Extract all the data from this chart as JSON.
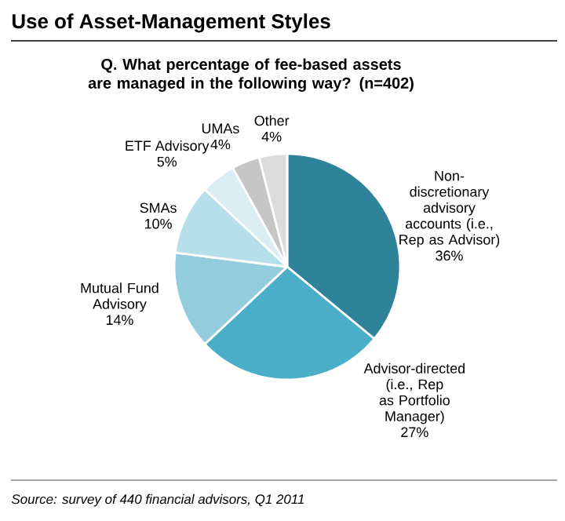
{
  "chart_data": {
    "type": "pie",
    "title": "Use of Asset-Management Styles",
    "subtitle": "Q. What percentage of fee-based assets are managed in the following way? (n=402)",
    "categories": [
      "Non-discretionary advisory accounts (i.e., Rep as Advisor)",
      "Advisor-directed (i.e., Rep as Portfolio Manager)",
      "Mutual Fund Advisory",
      "SMAs",
      "ETF Advisory",
      "UMAs",
      "Other"
    ],
    "values": [
      36,
      27,
      14,
      10,
      5,
      4,
      4
    ],
    "value_labels": [
      "36%",
      "27%",
      "14%",
      "10%",
      "5%",
      "4%",
      "4%"
    ],
    "colors": [
      "#2e8299",
      "#4aaec8",
      "#93cddd",
      "#b7dfe9",
      "#daeef3",
      "#c6c6c6",
      "#dcdcdc"
    ],
    "annotations": [
      "Source: survey of 440 financial advisors, Q1 2011"
    ]
  }
}
